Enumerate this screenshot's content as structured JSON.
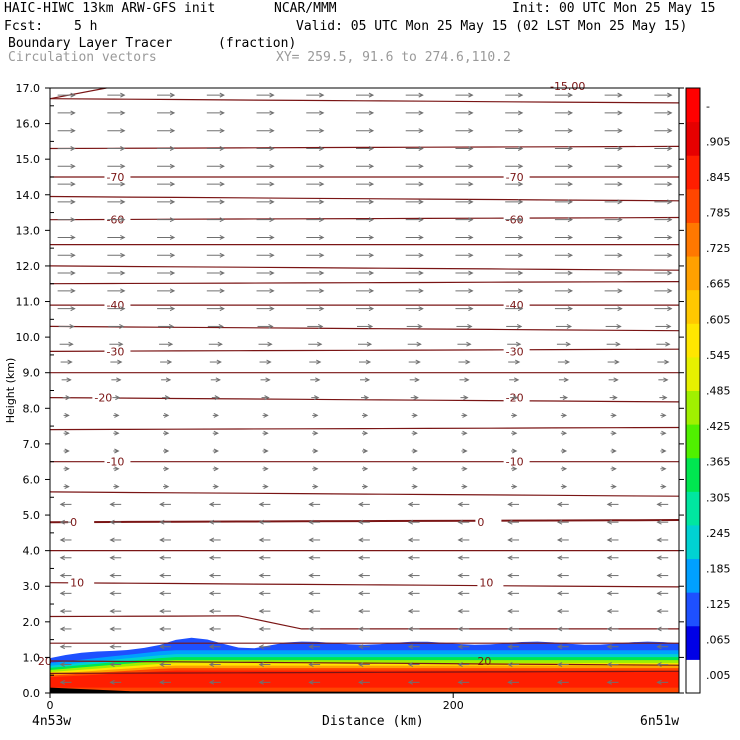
{
  "header": {
    "line1_left": "HAIC-HIWC 13km ARW-GFS init",
    "line1_mid": "NCAR/MMM",
    "line1_right": "Init: 00 UTC Mon 25 May 15",
    "fcst_label": "Fcst:",
    "fcst_value": "5 h",
    "valid": "Valid: 05 UTC Mon 25 May 15 (02 LST Mon 25 May 15)",
    "field_name": "Boundary Layer Tracer",
    "field_units": "(fraction)",
    "vectors_label": "Circulation vectors",
    "xy_text": "XY= 259.5, 91.6 to 274.6,110.2"
  },
  "chart_data": {
    "type": "heatmap",
    "title": "Boundary Layer Tracer",
    "units": "(fraction)",
    "xlabel": "Distance (km)",
    "ylabel": "Height (km)",
    "xlim": [
      0,
      312
    ],
    "ylim": [
      0,
      17
    ],
    "x_ticks": [
      0,
      200
    ],
    "y_ticks": [
      "0.0",
      "1.0",
      "2.0",
      "3.0",
      "4.0",
      "5.0",
      "6.0",
      "7.0",
      "8.0",
      "9.0",
      "10.0",
      "11.0",
      "12.0",
      "13.0",
      "14.0",
      "15.0",
      "16.0",
      "17.0"
    ],
    "x_left_label": "4n53w",
    "x_right_label": "6n51w",
    "colorbar_labels": [
      ".005",
      ".065",
      ".125",
      ".185",
      ".245",
      ".305",
      ".365",
      ".425",
      ".485",
      ".545",
      ".605",
      ".665",
      ".725",
      ".785",
      ".845",
      ".905",
      "-"
    ],
    "colorbar_colors": [
      "#ffffff",
      "#0000e6",
      "#1e50ff",
      "#00a0ff",
      "#00d2d2",
      "#00e6a0",
      "#00e650",
      "#50f000",
      "#a0f000",
      "#e6f000",
      "#ffe600",
      "#ffc800",
      "#ffa000",
      "#ff7800",
      "#ff4600",
      "#ff1e00",
      "#e60000",
      "#ff0000"
    ],
    "temperature_contours": [
      {
        "label": "-70",
        "y": 14.5
      },
      {
        "label": "-60",
        "y": 13.3
      },
      {
        "label": "-40",
        "y": 10.9
      },
      {
        "label": "-30",
        "y": 9.6
      },
      {
        "label": "-20",
        "y": 8.3
      },
      {
        "label": "-10",
        "y": 6.5
      },
      {
        "label": "0",
        "y": 4.8
      },
      {
        "label": "10",
        "y": 3.1
      },
      {
        "label": "20",
        "y": 0.9
      }
    ],
    "top_label": "-15.00",
    "tracer_top_km": 1.4
  }
}
